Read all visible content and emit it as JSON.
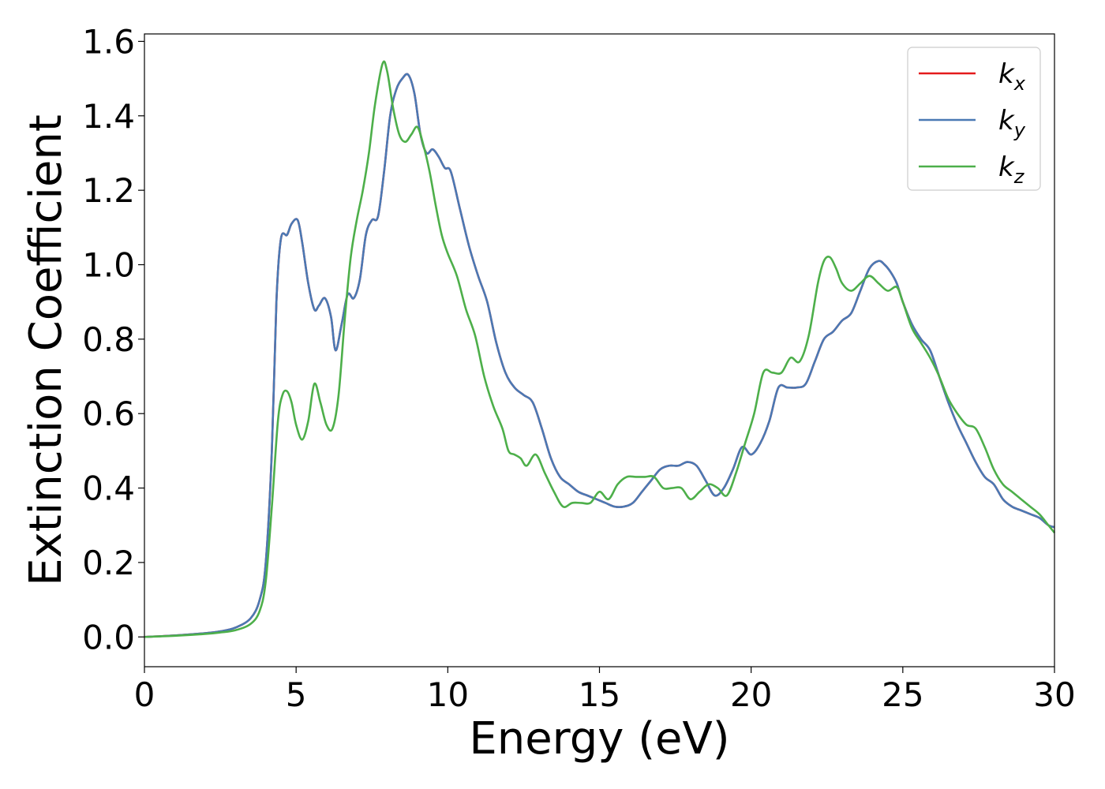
{
  "chart_data": {
    "type": "line",
    "title": "",
    "xlabel": "Energy (eV)",
    "ylabel": "Extinction Coefficient",
    "xlim": [
      0,
      30
    ],
    "ylim": [
      -0.08,
      1.62
    ],
    "xticks": [
      0,
      5,
      10,
      15,
      20,
      25,
      30
    ],
    "xtick_labels": [
      "0",
      "5",
      "10",
      "15",
      "20",
      "25",
      "30"
    ],
    "yticks": [
      0.0,
      0.2,
      0.4,
      0.6,
      0.8,
      1.0,
      1.2,
      1.4,
      1.6
    ],
    "ytick_labels": [
      "0.0",
      "0.2",
      "0.4",
      "0.6",
      "0.8",
      "1.0",
      "1.2",
      "1.4",
      "1.6"
    ],
    "grid": false,
    "legend_position": "top-right",
    "series": [
      {
        "name": "k_x",
        "legend_base": "k",
        "legend_sub": "x",
        "color": "#e41a1c",
        "x": [
          0,
          1,
          2,
          2.5,
          3,
          3.5,
          3.8,
          4.0,
          4.2,
          4.35,
          4.5,
          4.7,
          4.85,
          5.05,
          5.2,
          5.4,
          5.6,
          5.75,
          5.95,
          6.15,
          6.3,
          6.5,
          6.7,
          6.9,
          7.1,
          7.3,
          7.5,
          7.7,
          7.9,
          8.1,
          8.3,
          8.5,
          8.7,
          8.9,
          9.1,
          9.3,
          9.5,
          9.7,
          9.9,
          10.1,
          10.4,
          10.7,
          11.0,
          11.3,
          11.6,
          11.9,
          12.2,
          12.5,
          12.8,
          13.1,
          13.4,
          13.7,
          14.0,
          14.3,
          14.6,
          14.9,
          15.2,
          15.5,
          15.8,
          16.1,
          16.4,
          16.7,
          17.0,
          17.3,
          17.6,
          17.9,
          18.2,
          18.5,
          18.8,
          19.1,
          19.4,
          19.7,
          20.0,
          20.3,
          20.6,
          20.9,
          21.2,
          21.5,
          21.8,
          22.1,
          22.4,
          22.7,
          23.0,
          23.3,
          23.6,
          23.9,
          24.2,
          24.4,
          24.6,
          24.8,
          25.0,
          25.3,
          25.6,
          25.9,
          26.2,
          26.5,
          26.8,
          27.1,
          27.4,
          27.7,
          28.0,
          28.3,
          28.6,
          28.9,
          29.2,
          29.5,
          29.8,
          30.0
        ],
        "values": [
          0.0,
          0.004,
          0.01,
          0.015,
          0.025,
          0.05,
          0.1,
          0.2,
          0.5,
          0.9,
          1.07,
          1.08,
          1.11,
          1.12,
          1.06,
          0.95,
          0.88,
          0.89,
          0.91,
          0.86,
          0.77,
          0.84,
          0.92,
          0.91,
          0.96,
          1.08,
          1.12,
          1.13,
          1.25,
          1.4,
          1.47,
          1.5,
          1.51,
          1.46,
          1.35,
          1.3,
          1.31,
          1.29,
          1.26,
          1.25,
          1.15,
          1.05,
          0.97,
          0.9,
          0.79,
          0.71,
          0.67,
          0.65,
          0.63,
          0.56,
          0.48,
          0.43,
          0.41,
          0.39,
          0.38,
          0.37,
          0.36,
          0.35,
          0.35,
          0.36,
          0.39,
          0.42,
          0.45,
          0.46,
          0.46,
          0.47,
          0.46,
          0.42,
          0.38,
          0.4,
          0.45,
          0.51,
          0.49,
          0.52,
          0.58,
          0.67,
          0.67,
          0.67,
          0.68,
          0.74,
          0.8,
          0.82,
          0.85,
          0.87,
          0.93,
          0.99,
          1.01,
          1.0,
          0.98,
          0.95,
          0.9,
          0.84,
          0.8,
          0.77,
          0.7,
          0.63,
          0.57,
          0.52,
          0.47,
          0.43,
          0.41,
          0.37,
          0.35,
          0.34,
          0.33,
          0.32,
          0.3,
          0.295
        ]
      },
      {
        "name": "k_y",
        "legend_base": "k",
        "legend_sub": "y",
        "color": "#4a79b4",
        "x": [
          0,
          1,
          2,
          2.5,
          3,
          3.5,
          3.8,
          4.0,
          4.2,
          4.35,
          4.5,
          4.7,
          4.85,
          5.05,
          5.2,
          5.4,
          5.6,
          5.75,
          5.95,
          6.15,
          6.3,
          6.5,
          6.7,
          6.9,
          7.1,
          7.3,
          7.5,
          7.7,
          7.9,
          8.1,
          8.3,
          8.5,
          8.7,
          8.9,
          9.1,
          9.3,
          9.5,
          9.7,
          9.9,
          10.1,
          10.4,
          10.7,
          11.0,
          11.3,
          11.6,
          11.9,
          12.2,
          12.5,
          12.8,
          13.1,
          13.4,
          13.7,
          14.0,
          14.3,
          14.6,
          14.9,
          15.2,
          15.5,
          15.8,
          16.1,
          16.4,
          16.7,
          17.0,
          17.3,
          17.6,
          17.9,
          18.2,
          18.5,
          18.8,
          19.1,
          19.4,
          19.7,
          20.0,
          20.3,
          20.6,
          20.9,
          21.2,
          21.5,
          21.8,
          22.1,
          22.4,
          22.7,
          23.0,
          23.3,
          23.6,
          23.9,
          24.2,
          24.4,
          24.6,
          24.8,
          25.0,
          25.3,
          25.6,
          25.9,
          26.2,
          26.5,
          26.8,
          27.1,
          27.4,
          27.7,
          28.0,
          28.3,
          28.6,
          28.9,
          29.2,
          29.5,
          29.8,
          30.0
        ],
        "values": [
          0.0,
          0.004,
          0.01,
          0.015,
          0.025,
          0.05,
          0.1,
          0.2,
          0.5,
          0.9,
          1.07,
          1.08,
          1.11,
          1.12,
          1.06,
          0.95,
          0.88,
          0.89,
          0.91,
          0.86,
          0.77,
          0.84,
          0.92,
          0.91,
          0.96,
          1.08,
          1.12,
          1.13,
          1.25,
          1.4,
          1.47,
          1.5,
          1.51,
          1.46,
          1.35,
          1.3,
          1.31,
          1.29,
          1.26,
          1.25,
          1.15,
          1.05,
          0.97,
          0.9,
          0.79,
          0.71,
          0.67,
          0.65,
          0.63,
          0.56,
          0.48,
          0.43,
          0.41,
          0.39,
          0.38,
          0.37,
          0.36,
          0.35,
          0.35,
          0.36,
          0.39,
          0.42,
          0.45,
          0.46,
          0.46,
          0.47,
          0.46,
          0.42,
          0.38,
          0.4,
          0.45,
          0.51,
          0.49,
          0.52,
          0.58,
          0.67,
          0.67,
          0.67,
          0.68,
          0.74,
          0.8,
          0.82,
          0.85,
          0.87,
          0.93,
          0.99,
          1.01,
          1.0,
          0.98,
          0.95,
          0.9,
          0.84,
          0.8,
          0.77,
          0.7,
          0.63,
          0.57,
          0.52,
          0.47,
          0.43,
          0.41,
          0.37,
          0.35,
          0.34,
          0.33,
          0.32,
          0.3,
          0.295
        ]
      },
      {
        "name": "k_z",
        "legend_base": "k",
        "legend_sub": "z",
        "color": "#4daf4a",
        "x": [
          0,
          1,
          2,
          2.5,
          3,
          3.5,
          3.8,
          4.0,
          4.2,
          4.4,
          4.55,
          4.7,
          4.85,
          5.0,
          5.2,
          5.4,
          5.6,
          5.8,
          6.0,
          6.2,
          6.4,
          6.6,
          6.8,
          7.0,
          7.2,
          7.4,
          7.6,
          7.85,
          8.0,
          8.2,
          8.4,
          8.6,
          8.8,
          9.0,
          9.2,
          9.4,
          9.6,
          9.8,
          10.0,
          10.3,
          10.6,
          10.9,
          11.2,
          11.5,
          11.8,
          12.0,
          12.2,
          12.4,
          12.6,
          12.9,
          13.2,
          13.5,
          13.8,
          14.1,
          14.4,
          14.7,
          15.0,
          15.3,
          15.6,
          15.9,
          16.2,
          16.5,
          16.8,
          17.1,
          17.4,
          17.7,
          18.0,
          18.3,
          18.6,
          18.9,
          19.2,
          19.5,
          19.8,
          20.1,
          20.4,
          20.7,
          21.0,
          21.3,
          21.6,
          21.9,
          22.2,
          22.4,
          22.6,
          22.8,
          23.0,
          23.3,
          23.6,
          23.9,
          24.2,
          24.5,
          24.8,
          25.0,
          25.3,
          25.6,
          25.9,
          26.2,
          26.5,
          26.8,
          27.1,
          27.4,
          27.7,
          28.0,
          28.3,
          28.6,
          28.9,
          29.2,
          29.5,
          29.8,
          30.0
        ],
        "values": [
          0.0,
          0.003,
          0.008,
          0.012,
          0.018,
          0.035,
          0.07,
          0.15,
          0.35,
          0.58,
          0.65,
          0.66,
          0.63,
          0.57,
          0.53,
          0.58,
          0.68,
          0.63,
          0.57,
          0.56,
          0.65,
          0.85,
          1.02,
          1.12,
          1.2,
          1.3,
          1.43,
          1.54,
          1.52,
          1.42,
          1.35,
          1.33,
          1.35,
          1.37,
          1.32,
          1.25,
          1.16,
          1.08,
          1.03,
          0.97,
          0.88,
          0.81,
          0.7,
          0.62,
          0.56,
          0.5,
          0.49,
          0.48,
          0.46,
          0.49,
          0.44,
          0.39,
          0.35,
          0.36,
          0.36,
          0.36,
          0.39,
          0.37,
          0.41,
          0.43,
          0.43,
          0.43,
          0.43,
          0.4,
          0.4,
          0.4,
          0.37,
          0.39,
          0.41,
          0.4,
          0.38,
          0.44,
          0.52,
          0.6,
          0.71,
          0.71,
          0.71,
          0.75,
          0.74,
          0.81,
          0.95,
          1.01,
          1.02,
          0.99,
          0.95,
          0.93,
          0.95,
          0.97,
          0.95,
          0.93,
          0.94,
          0.9,
          0.83,
          0.79,
          0.75,
          0.7,
          0.64,
          0.6,
          0.57,
          0.56,
          0.51,
          0.45,
          0.41,
          0.39,
          0.37,
          0.35,
          0.33,
          0.3,
          0.28
        ]
      }
    ]
  }
}
